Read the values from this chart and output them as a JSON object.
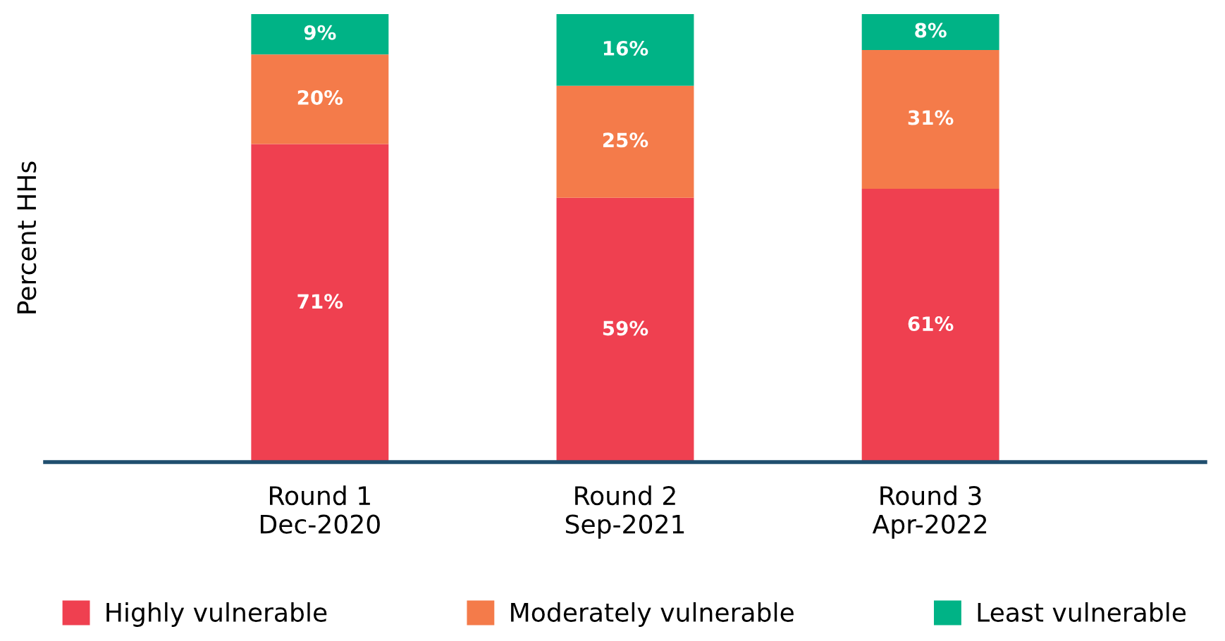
{
  "chart_data": {
    "type": "bar",
    "stacked": true,
    "ylabel": "Percent HHs",
    "categories": [
      "Round 1\nDec-2020",
      "Round 2\nSep-2021",
      "Round 3\nApr-2022"
    ],
    "series": [
      {
        "name": "Highly vulnerable",
        "color": "#ef4050",
        "values": [
          71,
          59,
          61
        ],
        "value_labels": [
          "71%",
          "59%",
          "61%"
        ]
      },
      {
        "name": "Moderately vulnerable",
        "color": "#f47b4a",
        "values": [
          20,
          25,
          31
        ],
        "value_labels": [
          "20%",
          "25%",
          "31%"
        ]
      },
      {
        "name": "Least vulnerable",
        "color": "#00b386",
        "values": [
          9,
          16,
          8
        ],
        "value_labels": [
          "9%",
          "16%",
          "8%"
        ]
      }
    ],
    "legend": "bottom"
  }
}
